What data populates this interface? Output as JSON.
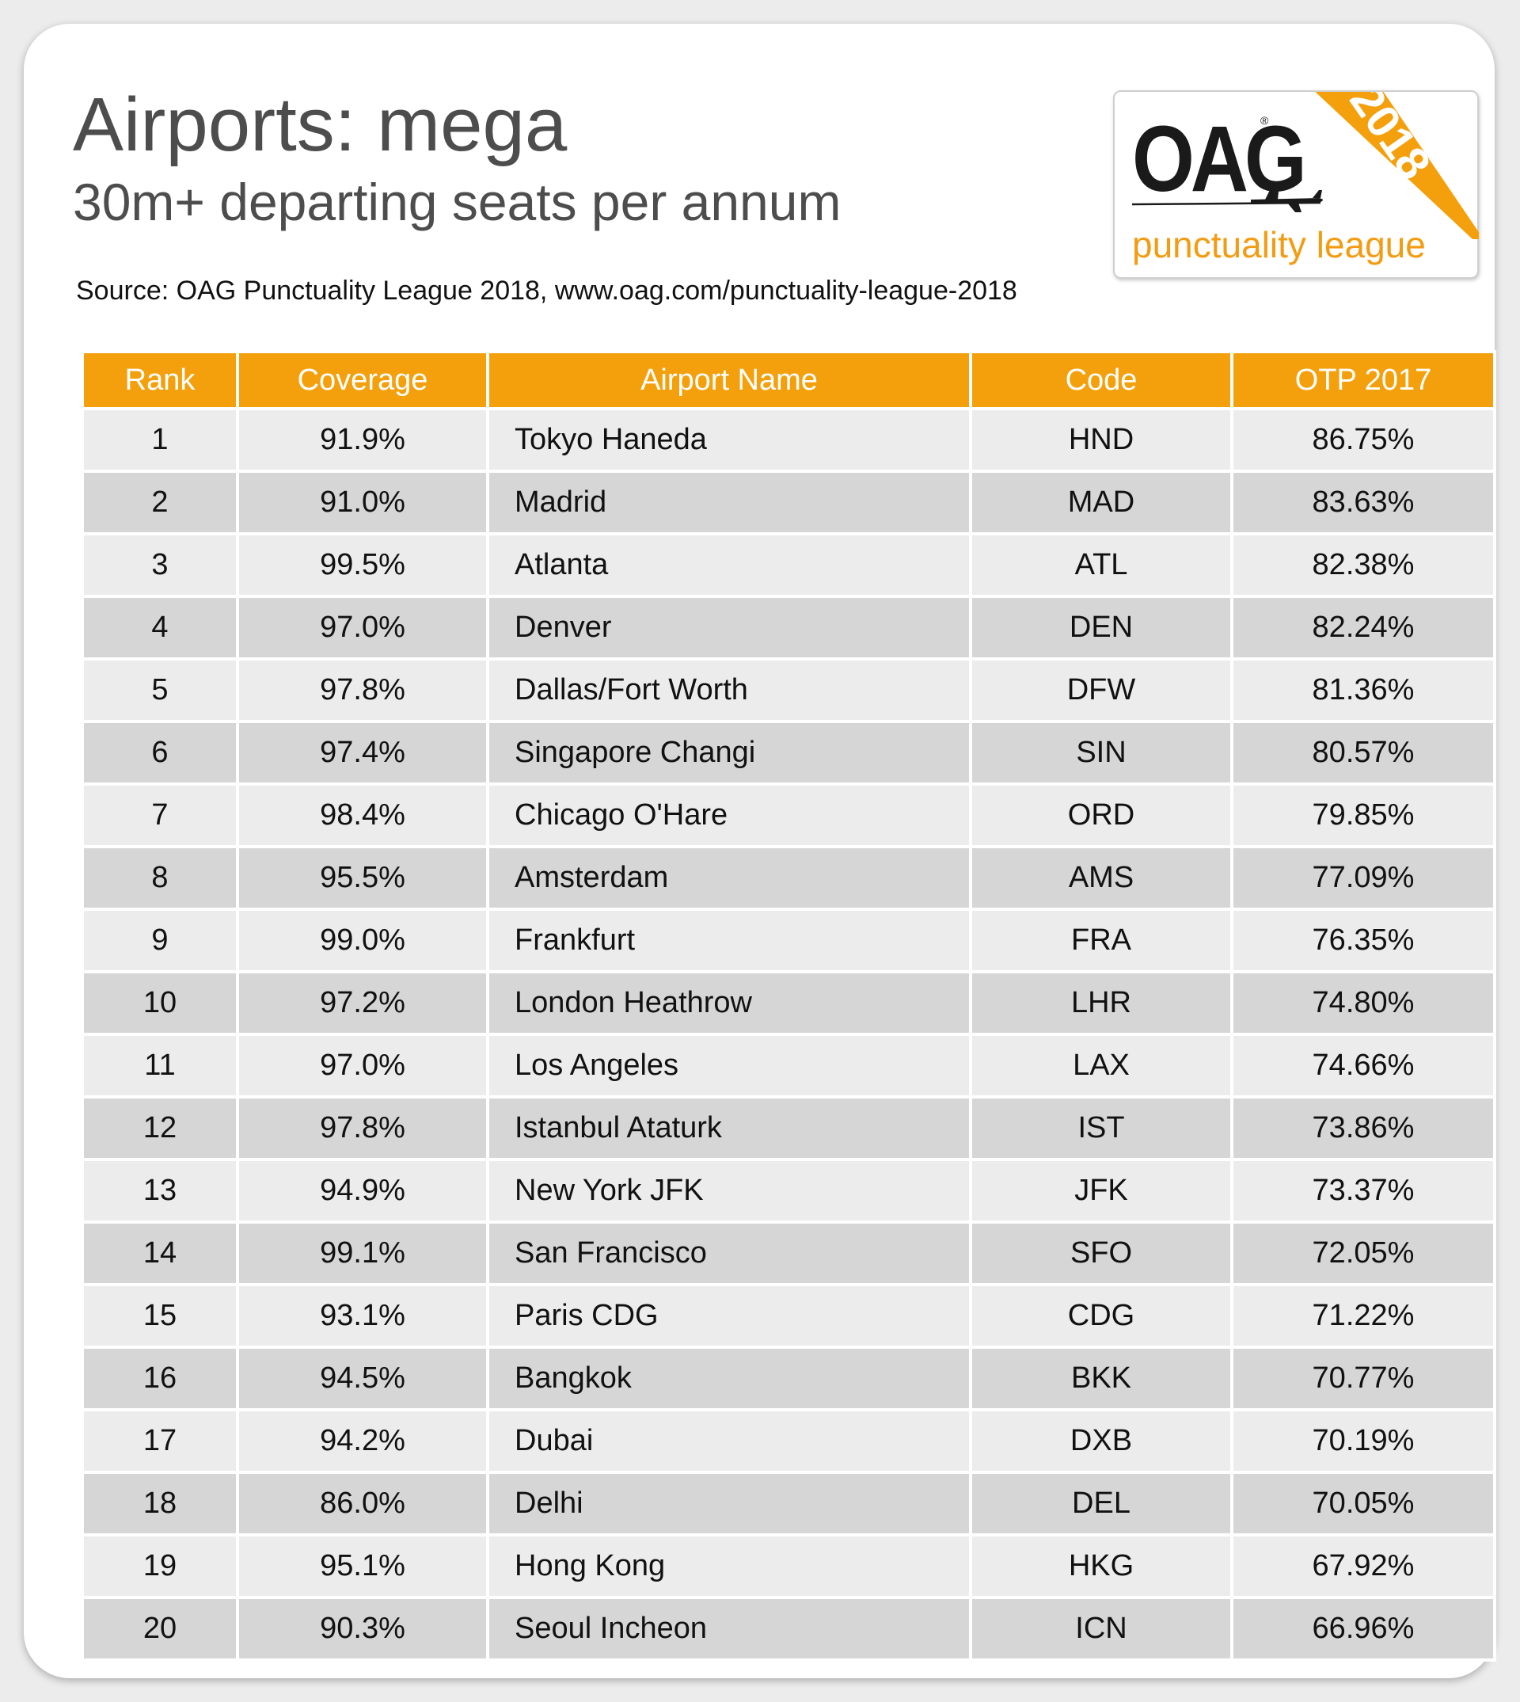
{
  "header": {
    "title": "Airports: mega",
    "subtitle": "30m+ departing seats per annum",
    "source": "Source: OAG Punctuality League 2018, www.oag.com/punctuality-league-2018"
  },
  "logo": {
    "brand": "OAG",
    "registered": "®",
    "year": "2018",
    "tagline": "punctuality league",
    "accent_color": "#f4a00c"
  },
  "chart_data": {
    "type": "table",
    "columns": [
      "Rank",
      "Coverage",
      "Airport Name",
      "Code",
      "OTP 2017"
    ],
    "rows": [
      [
        "1",
        "91.9%",
        "Tokyo Haneda",
        "HND",
        "86.75%"
      ],
      [
        "2",
        "91.0%",
        "Madrid",
        "MAD",
        "83.63%"
      ],
      [
        "3",
        "99.5%",
        "Atlanta",
        "ATL",
        "82.38%"
      ],
      [
        "4",
        "97.0%",
        "Denver",
        "DEN",
        "82.24%"
      ],
      [
        "5",
        "97.8%",
        "Dallas/Fort Worth",
        "DFW",
        "81.36%"
      ],
      [
        "6",
        "97.4%",
        "Singapore Changi",
        "SIN",
        "80.57%"
      ],
      [
        "7",
        "98.4%",
        "Chicago O'Hare",
        "ORD",
        "79.85%"
      ],
      [
        "8",
        "95.5%",
        "Amsterdam",
        "AMS",
        "77.09%"
      ],
      [
        "9",
        "99.0%",
        "Frankfurt",
        "FRA",
        "76.35%"
      ],
      [
        "10",
        "97.2%",
        "London Heathrow",
        "LHR",
        "74.80%"
      ],
      [
        "11",
        "97.0%",
        "Los Angeles",
        "LAX",
        "74.66%"
      ],
      [
        "12",
        "97.8%",
        "Istanbul Ataturk",
        "IST",
        "73.86%"
      ],
      [
        "13",
        "94.9%",
        "New York JFK",
        "JFK",
        "73.37%"
      ],
      [
        "14",
        "99.1%",
        "San Francisco",
        "SFO",
        "72.05%"
      ],
      [
        "15",
        "93.1%",
        "Paris CDG",
        "CDG",
        "71.22%"
      ],
      [
        "16",
        "94.5%",
        "Bangkok",
        "BKK",
        "70.77%"
      ],
      [
        "17",
        "94.2%",
        "Dubai",
        "DXB",
        "70.19%"
      ],
      [
        "18",
        "86.0%",
        "Delhi",
        "DEL",
        "70.05%"
      ],
      [
        "19",
        "95.1%",
        "Hong Kong",
        "HKG",
        "67.92%"
      ],
      [
        "20",
        "90.3%",
        "Seoul Incheon",
        "ICN",
        "66.96%"
      ]
    ]
  }
}
